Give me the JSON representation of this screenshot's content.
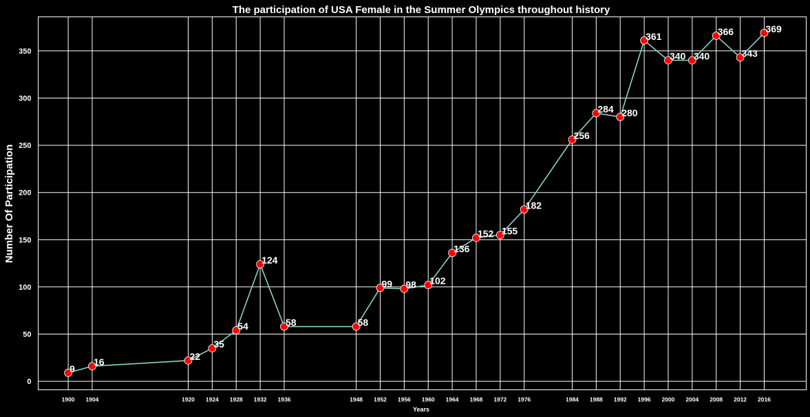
{
  "chart_data": {
    "type": "line",
    "title": "The participation of USA Female in the Summer Olympics throughout history",
    "xlabel": "Years",
    "ylabel": "Number Of Participation",
    "x": [
      1900,
      1904,
      1920,
      1924,
      1928,
      1932,
      1936,
      1948,
      1952,
      1956,
      1960,
      1964,
      1968,
      1972,
      1976,
      1984,
      1988,
      1992,
      1996,
      2000,
      2004,
      2008,
      2012,
      2016
    ],
    "values": [
      9,
      16,
      22,
      35,
      54,
      124,
      58,
      58,
      99,
      98,
      102,
      136,
      152,
      155,
      182,
      256,
      284,
      280,
      361,
      340,
      340,
      366,
      343,
      369
    ],
    "y_ticks": [
      0,
      50,
      100,
      150,
      200,
      250,
      300,
      350
    ],
    "ylim": [
      -9,
      386
    ],
    "xlim": [
      1895,
      2023
    ],
    "grid": true,
    "colors": {
      "background": "#000000",
      "line": "#8dd3c7",
      "marker": "#ff0000",
      "marker_edge": "#ffffff",
      "grid": "#ffffff",
      "text": "#ffffff"
    }
  }
}
